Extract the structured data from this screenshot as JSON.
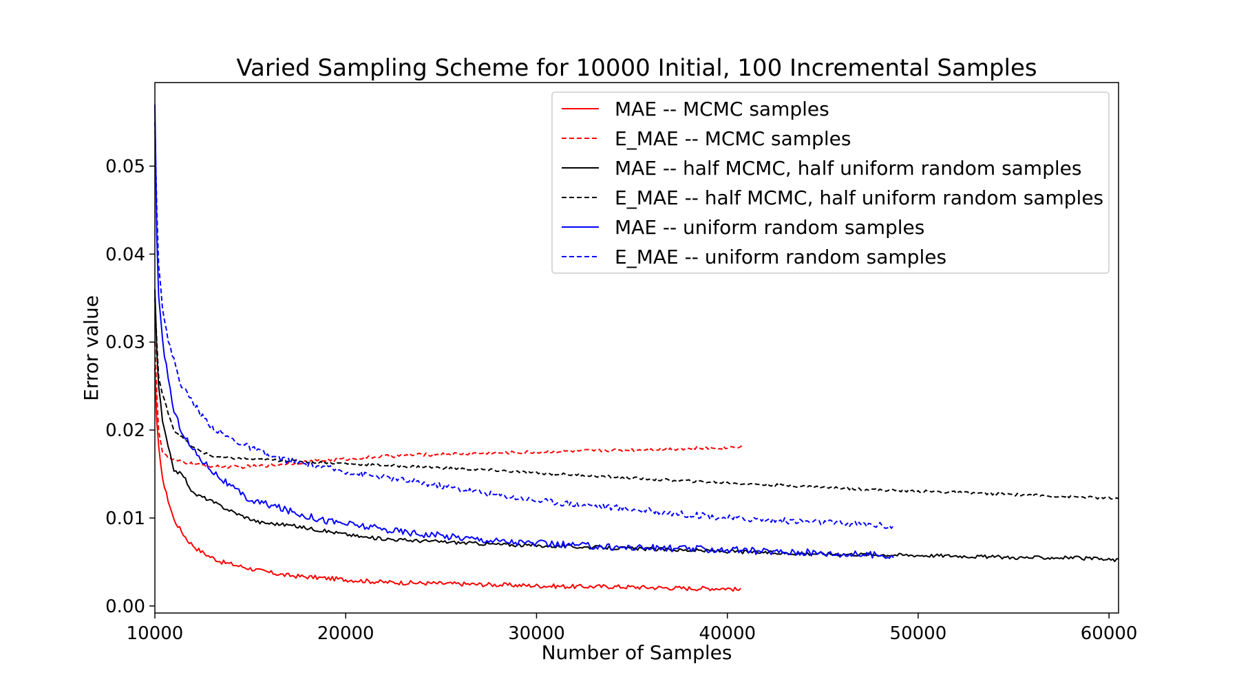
{
  "chart_data": {
    "type": "line",
    "title": "Varied Sampling Scheme for 10000 Initial, 100 Incremental Samples",
    "xlabel": "Number of Samples",
    "ylabel": "Error value",
    "xlim": [
      10000,
      60500
    ],
    "ylim": [
      -0.0008,
      0.0595
    ],
    "xticks": [
      10000,
      20000,
      30000,
      40000,
      50000,
      60000
    ],
    "xtick_labels": [
      "10000",
      "20000",
      "30000",
      "40000",
      "50000",
      "60000"
    ],
    "yticks": [
      0.0,
      0.01,
      0.02,
      0.03,
      0.04,
      0.05
    ],
    "ytick_labels": [
      "0.00",
      "0.01",
      "0.02",
      "0.03",
      "0.04",
      "0.05"
    ],
    "legend_position": "top-right",
    "series": [
      {
        "name": "MAE -- MCMC samples",
        "color": "#ff0000",
        "style": "solid",
        "x": [
          10000,
          10100,
          10200,
          10300,
          10500,
          10700,
          11000,
          11300,
          11700,
          12200,
          12800,
          13500,
          14500,
          15500,
          16800,
          18000,
          20000,
          22000,
          24000,
          26000,
          28000,
          30000,
          32000,
          34000,
          36000,
          38000,
          40000,
          40700
        ],
        "y": [
          0.027,
          0.021,
          0.018,
          0.016,
          0.0135,
          0.012,
          0.0098,
          0.0088,
          0.0075,
          0.0065,
          0.0057,
          0.005,
          0.0045,
          0.004,
          0.0035,
          0.0033,
          0.003,
          0.0027,
          0.0026,
          0.0025,
          0.0024,
          0.0023,
          0.0022,
          0.0022,
          0.0021,
          0.002,
          0.002,
          0.0018
        ],
        "noise": 0.00025
      },
      {
        "name": "E_MAE -- MCMC samples",
        "color": "#ff0000",
        "style": "dashed",
        "x": [
          10000,
          10100,
          10200,
          10400,
          10700,
          11100,
          11600,
          12500,
          13500,
          14500,
          16000,
          18000,
          20000,
          22000,
          24000,
          26000,
          28000,
          30000,
          32000,
          34000,
          36000,
          38000,
          40000,
          40800
        ],
        "y": [
          0.03,
          0.024,
          0.02,
          0.0175,
          0.0168,
          0.0165,
          0.0163,
          0.016,
          0.0158,
          0.0158,
          0.016,
          0.0164,
          0.0167,
          0.017,
          0.0172,
          0.0173,
          0.0174,
          0.0175,
          0.0176,
          0.0177,
          0.0178,
          0.0179,
          0.018,
          0.0182
        ],
        "noise": 0.00018
      },
      {
        "name": "MAE -- half MCMC, half uniform random samples",
        "color": "#000000",
        "style": "solid",
        "x": [
          10000,
          10100,
          10200,
          10400,
          10700,
          11000,
          11500,
          12000,
          12700,
          13500,
          14500,
          15500,
          17000,
          19000,
          21000,
          23000,
          25000,
          28000,
          31000,
          34000,
          37000,
          40000,
          43000,
          46000,
          49000,
          52000,
          55000,
          58000,
          60500
        ],
        "y": [
          0.036,
          0.029,
          0.025,
          0.021,
          0.018,
          0.0155,
          0.0148,
          0.0128,
          0.0122,
          0.0113,
          0.0103,
          0.0095,
          0.0092,
          0.0085,
          0.0078,
          0.0075,
          0.0073,
          0.007,
          0.0068,
          0.0066,
          0.0064,
          0.0062,
          0.006,
          0.0059,
          0.0058,
          0.0057,
          0.0055,
          0.0055,
          0.0052
        ],
        "noise": 0.0002
      },
      {
        "name": "E_MAE -- half MCMC, half uniform random samples",
        "color": "#000000",
        "style": "dashed",
        "x": [
          10000,
          10100,
          10200,
          10400,
          10700,
          11000,
          11500,
          12000,
          13000,
          14000,
          15000,
          16000,
          18000,
          20000,
          22000,
          25000,
          28000,
          30000,
          33000,
          36000,
          40000,
          44000,
          48000,
          52000,
          56000,
          60500
        ],
        "y": [
          0.035,
          0.03,
          0.026,
          0.024,
          0.022,
          0.02,
          0.019,
          0.018,
          0.017,
          0.0168,
          0.0167,
          0.0166,
          0.0164,
          0.0162,
          0.016,
          0.0157,
          0.0154,
          0.0151,
          0.0148,
          0.0144,
          0.014,
          0.0136,
          0.0132,
          0.0129,
          0.0126,
          0.0122
        ],
        "noise": 0.00015
      },
      {
        "name": "MAE -- uniform random samples",
        "color": "#0000ff",
        "style": "solid",
        "x": [
          10000,
          10100,
          10200,
          10400,
          10700,
          11000,
          11400,
          11900,
          12500,
          13200,
          14000,
          15000,
          16000,
          17500,
          19000,
          20500,
          22000,
          24000,
          26000,
          28000,
          30000,
          32000,
          34000,
          36000,
          38000,
          40000,
          42000,
          44000,
          46000,
          48000,
          48700
        ],
        "y": [
          0.057,
          0.042,
          0.035,
          0.03,
          0.026,
          0.022,
          0.02,
          0.018,
          0.0165,
          0.015,
          0.0135,
          0.012,
          0.0115,
          0.0105,
          0.0097,
          0.0092,
          0.0087,
          0.0082,
          0.0078,
          0.0074,
          0.0071,
          0.0069,
          0.0067,
          0.0066,
          0.0065,
          0.0064,
          0.0062,
          0.0061,
          0.0059,
          0.0058,
          0.0057
        ],
        "noise": 0.0004
      },
      {
        "name": "E_MAE -- uniform random samples",
        "color": "#0000ff",
        "style": "dashed",
        "x": [
          10000,
          10100,
          10200,
          10400,
          10700,
          11000,
          11400,
          11900,
          12500,
          13200,
          14000,
          15000,
          16000,
          17500,
          19000,
          20500,
          22000,
          24000,
          26000,
          28000,
          30000,
          32000,
          34000,
          36000,
          38000,
          40000,
          42000,
          44000,
          46000,
          48000,
          48700
        ],
        "y": [
          0.055,
          0.045,
          0.039,
          0.034,
          0.03,
          0.028,
          0.025,
          0.0235,
          0.0215,
          0.02,
          0.019,
          0.018,
          0.017,
          0.0163,
          0.0157,
          0.0151,
          0.0146,
          0.014,
          0.0133,
          0.0126,
          0.012,
          0.0116,
          0.0112,
          0.0108,
          0.0104,
          0.01,
          0.0098,
          0.0096,
          0.0094,
          0.0092,
          0.009
        ],
        "noise": 0.00035
      }
    ]
  }
}
